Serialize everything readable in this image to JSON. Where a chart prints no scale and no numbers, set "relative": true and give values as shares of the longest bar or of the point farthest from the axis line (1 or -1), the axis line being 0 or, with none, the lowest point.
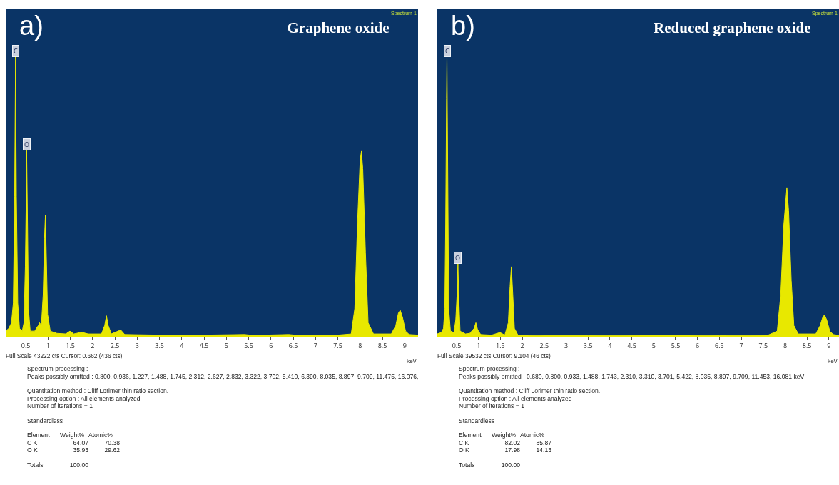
{
  "chart_data": [
    {
      "type": "area",
      "title": "Graphene oxide",
      "xlabel": "keV",
      "relative": true,
      "color": "#e8e800",
      "xlim": [
        0.05,
        9.3
      ],
      "xticks": [
        0.5,
        1,
        1.5,
        2,
        2.5,
        3,
        3.5,
        4,
        4.5,
        5,
        5.5,
        6,
        6.5,
        7,
        7.5,
        8,
        8.5,
        9
      ],
      "tick_labels": "x",
      "x": [
        0.05,
        0.12,
        0.18,
        0.22,
        0.25,
        0.27,
        0.29,
        0.32,
        0.36,
        0.42,
        0.46,
        0.49,
        0.51,
        0.52,
        0.54,
        0.56,
        0.6,
        0.7,
        0.78,
        0.81,
        0.85,
        0.89,
        0.92,
        0.94,
        0.96,
        0.99,
        1.05,
        1.2,
        1.4,
        1.49,
        1.58,
        1.75,
        1.9,
        2.2,
        2.27,
        2.31,
        2.35,
        2.42,
        2.63,
        2.72,
        3.5,
        4.5,
        5.41,
        5.6,
        6.4,
        6.6,
        7.5,
        7.8,
        7.88,
        7.94,
        8.0,
        8.03,
        8.06,
        8.12,
        8.18,
        8.3,
        8.7,
        8.8,
        8.86,
        8.9,
        8.95,
        9.02,
        9.1,
        9.3
      ],
      "values": [
        0.02,
        0.03,
        0.05,
        0.12,
        0.5,
        1,
        0.5,
        0.12,
        0.03,
        0.02,
        0.05,
        0.25,
        0.5,
        0.665,
        0.4,
        0.1,
        0.02,
        0.02,
        0.04,
        0.05,
        0.04,
        0.15,
        0.35,
        0.434,
        0.3,
        0.08,
        0.02,
        0.012,
        0.01,
        0.02,
        0.01,
        0.016,
        0.01,
        0.01,
        0.04,
        0.075,
        0.04,
        0.01,
        0.024,
        0.008,
        0.006,
        0.006,
        0.008,
        0.005,
        0.008,
        0.005,
        0.006,
        0.01,
        0.1,
        0.4,
        0.63,
        0.663,
        0.6,
        0.3,
        0.05,
        0.01,
        0.01,
        0.04,
        0.085,
        0.094,
        0.07,
        0.02,
        0.008,
        0.006
      ],
      "annotations": [
        "a)",
        "Spectrum 1",
        "Full Scale 43222 cts Cursor: 0.662  (436 cts)",
        {
          "text": "C",
          "x": 0.27,
          "y": 1
        },
        {
          "text": "O",
          "x": 0.52,
          "y": 0.665
        },
        "Spectrum processing :\nPeaks possibly omitted : 0.800, 0.936, 1.227, 1.488, 1.745, 2.312, 2.627, 2.832, 3.322, 3.702, 5.410, 6.390, 8.035, 8.897, 9.709, 11.475, 16.076,",
        "Quantitation method : Cliff Lorimer thin ratio section.\nProcessing option : All elements analyzed\nNumber of iterations = 1",
        "Standardless",
        "Element  Weight%  Atomic%\nC K  64.07  70.38\nO K  35.93  29.62",
        "Totals  100.00"
      ]
    },
    {
      "type": "area",
      "title": "Reduced graphene oxide",
      "xlabel": "keV",
      "relative": true,
      "color": "#e8e800",
      "xlim": [
        0.06,
        9.23
      ],
      "xticks": [
        0.5,
        1,
        1.5,
        2,
        2.5,
        3,
        3.5,
        4,
        4.5,
        5,
        5.5,
        6,
        6.5,
        7,
        7.5,
        8,
        8.5,
        9
      ],
      "tick_labels": "x",
      "x": [
        0.06,
        0.15,
        0.2,
        0.23,
        0.25,
        0.27,
        0.28,
        0.3,
        0.32,
        0.36,
        0.44,
        0.48,
        0.51,
        0.53,
        0.55,
        0.58,
        0.7,
        0.8,
        0.9,
        0.94,
        0.98,
        1.05,
        1.3,
        1.49,
        1.6,
        1.68,
        1.72,
        1.75,
        1.78,
        1.82,
        1.9,
        2.5,
        3.5,
        5.42,
        6.5,
        7.6,
        7.82,
        7.9,
        7.97,
        8.04,
        8.08,
        8.14,
        8.2,
        8.3,
        8.7,
        8.8,
        8.86,
        8.9,
        8.95,
        9.02,
        9.1,
        9.23
      ],
      "values": [
        0.01,
        0.015,
        0.03,
        0.1,
        0.4,
        0.85,
        1,
        0.55,
        0.1,
        0.02,
        0.015,
        0.06,
        0.15,
        0.26,
        0.14,
        0.02,
        0.01,
        0.012,
        0.03,
        0.05,
        0.025,
        0.008,
        0.006,
        0.015,
        0.006,
        0.05,
        0.18,
        0.25,
        0.16,
        0.03,
        0.006,
        0.004,
        0.004,
        0.006,
        0.004,
        0.005,
        0.02,
        0.15,
        0.4,
        0.533,
        0.45,
        0.2,
        0.04,
        0.01,
        0.01,
        0.04,
        0.07,
        0.078,
        0.06,
        0.02,
        0.008,
        0.005
      ],
      "annotations": [
        "b)",
        "Spectrum 1",
        "Full Scale 39532 cts Cursor: 9.104  (46 cts)",
        {
          "text": "C",
          "x": 0.28,
          "y": 1
        },
        {
          "text": "O",
          "x": 0.53,
          "y": 0.26
        },
        "Spectrum processing :\nPeaks possibly omitted : 0.680, 0.800, 0.933, 1.488, 1.743, 2.310, 3.310, 3.701, 5.422, 8.035, 8.897, 9.709, 11.453, 16.081 keV",
        "Quantitation method : Cliff Lorimer thin ratio section.\nProcessing option : All elements analyzed\nNumber of iterations = 1",
        "Standardless",
        "Element  Weight%  Atomic%\nC K  82.02  85.87\nO K  17.98  14.13",
        "Totals  100.00"
      ]
    }
  ]
}
